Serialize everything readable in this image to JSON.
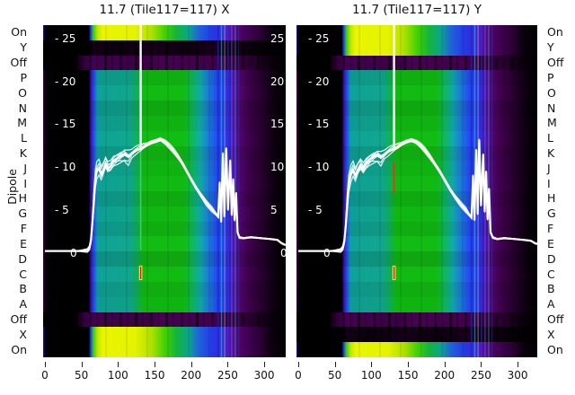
{
  "titles": {
    "left": "11.7 (Tile117=117) X",
    "right": "11.7 (Tile117=117) Y"
  },
  "axes": {
    "dipole_label": "Dipole",
    "dipole_rows": [
      "On",
      "Y",
      "Off",
      "P",
      "O",
      "N",
      "M",
      "L",
      "K",
      "J",
      "I",
      "H",
      "G",
      "F",
      "E",
      "D",
      "C",
      "B",
      "A",
      "Off",
      "X",
      "On"
    ],
    "x_ticks": [
      0,
      50,
      100,
      150,
      200,
      250,
      300
    ],
    "inner_value_ticks": [
      25,
      20,
      15,
      10,
      5,
      0
    ]
  },
  "chart_data": [
    {
      "type": "heatmap",
      "title": "11.7 (Tile117=117) X",
      "x_range": [
        0,
        330
      ],
      "x_ticks": [
        0,
        50,
        100,
        150,
        200,
        250,
        300
      ],
      "y_categories": [
        "On",
        "Y",
        "Off",
        "P",
        "O",
        "N",
        "M",
        "L",
        "K",
        "J",
        "I",
        "H",
        "G",
        "F",
        "E",
        "D",
        "C",
        "B",
        "A",
        "Off",
        "X",
        "On"
      ],
      "row_profiles": [
        "bright",
        "dark",
        "off",
        "mid",
        "mid",
        "mid",
        "mid",
        "mid",
        "mid",
        "mid",
        "mid",
        "mid",
        "mid",
        "mid",
        "mid",
        "mid",
        "mid",
        "mid",
        "mid",
        "off",
        "bright",
        "bright"
      ],
      "inner_left_labels": [
        "- 25",
        "- 20",
        "- 15",
        "- 10",
        "- 5"
      ],
      "inner_right_labels": [
        "25",
        "20",
        "15",
        "10",
        "5"
      ],
      "inner_zero_label": "0",
      "has_right_labels": true,
      "value_tick_values": [
        25,
        20,
        15,
        10,
        5
      ],
      "spike_x": 131,
      "sub_spike": {
        "color": "#3fd45e",
        "from": 12.8,
        "to": 0.3
      },
      "mark": {
        "x": 131,
        "from": -1.5,
        "to": -3.2,
        "fill": "#ffe81c",
        "center": "#e01313"
      },
      "line_points": [
        [
          0,
          0.2
        ],
        [
          45,
          0.2
        ],
        [
          58,
          0.3
        ],
        [
          61,
          0.6
        ],
        [
          63,
          1.5
        ],
        [
          65,
          3.6
        ],
        [
          67,
          6.2
        ],
        [
          69,
          8.6
        ],
        [
          71,
          9.6
        ],
        [
          74,
          9.9
        ],
        [
          77,
          9.2
        ],
        [
          80,
          9.7
        ],
        [
          83,
          10.4
        ],
        [
          86,
          9.9
        ],
        [
          90,
          10.1
        ],
        [
          94,
          10.7
        ],
        [
          99,
          11.0
        ],
        [
          104,
          11.3
        ],
        [
          109,
          11.5
        ],
        [
          114,
          11.2
        ],
        [
          119,
          11.6
        ],
        [
          124,
          11.9
        ],
        [
          128,
          12.1
        ],
        [
          131,
          12.2
        ],
        [
          135,
          12.4
        ],
        [
          140,
          12.6
        ],
        [
          146,
          12.9
        ],
        [
          152,
          13.1
        ],
        [
          158,
          13.3
        ],
        [
          164,
          13.0
        ],
        [
          170,
          12.5
        ],
        [
          176,
          11.9
        ],
        [
          182,
          11.2
        ],
        [
          188,
          10.4
        ],
        [
          194,
          9.5
        ],
        [
          200,
          8.6
        ],
        [
          207,
          7.6
        ],
        [
          214,
          6.7
        ],
        [
          221,
          5.8
        ],
        [
          228,
          5.1
        ],
        [
          234,
          4.5
        ],
        [
          237,
          4.2
        ],
        [
          239,
          8.2
        ],
        [
          241,
          3.6
        ],
        [
          243.5,
          11.6
        ],
        [
          245.5,
          4.2
        ],
        [
          248,
          12.2
        ],
        [
          250.5,
          5.0
        ],
        [
          253.5,
          10.8
        ],
        [
          255.5,
          4.4
        ],
        [
          257.5,
          8.6
        ],
        [
          259.5,
          3.8
        ],
        [
          261.5,
          7.0
        ],
        [
          263.5,
          2.4
        ],
        [
          266,
          1.8
        ],
        [
          272,
          1.7
        ],
        [
          282,
          1.8
        ],
        [
          295,
          1.7
        ],
        [
          308,
          1.6
        ],
        [
          318,
          1.5
        ],
        [
          324,
          1.1
        ],
        [
          329,
          0.9
        ]
      ]
    },
    {
      "type": "heatmap",
      "title": "11.7 (Tile117=117) Y",
      "x_range": [
        0,
        330
      ],
      "x_ticks": [
        0,
        50,
        100,
        150,
        200,
        250,
        300
      ],
      "y_categories": [
        "On",
        "Y",
        "Off",
        "P",
        "O",
        "N",
        "M",
        "L",
        "K",
        "J",
        "I",
        "H",
        "G",
        "F",
        "E",
        "D",
        "C",
        "B",
        "A",
        "Off",
        "X",
        "On"
      ],
      "row_profiles": [
        "bright",
        "bright",
        "off",
        "mid",
        "mid",
        "mid",
        "mid",
        "mid",
        "mid",
        "mid",
        "mid",
        "mid",
        "mid",
        "mid",
        "mid",
        "mid",
        "mid",
        "mid",
        "mid",
        "off",
        "dark",
        "bright"
      ],
      "inner_left_labels": [
        "- 25",
        "- 20",
        "- 15",
        "- 10",
        "- 5"
      ],
      "inner_right_labels": [],
      "inner_zero_label": "0",
      "has_right_labels": false,
      "value_tick_values": [
        25,
        20,
        15,
        10,
        5
      ],
      "spike_x": 131,
      "sub_spike": {
        "color": "#e83418",
        "from": 10.6,
        "to": 7.0
      },
      "mark": {
        "x": 131,
        "from": -1.5,
        "to": -3.2,
        "fill": "#ffe81c",
        "center": "#e01313"
      },
      "line_points": [
        [
          0,
          0.2
        ],
        [
          45,
          0.2
        ],
        [
          58,
          0.3
        ],
        [
          61,
          0.6
        ],
        [
          63,
          1.4
        ],
        [
          65,
          3.2
        ],
        [
          67,
          5.8
        ],
        [
          69,
          8.0
        ],
        [
          72,
          9.2
        ],
        [
          75,
          9.7
        ],
        [
          78,
          9.0
        ],
        [
          81,
          9.6
        ],
        [
          85,
          10.2
        ],
        [
          89,
          9.8
        ],
        [
          93,
          10.4
        ],
        [
          98,
          10.9
        ],
        [
          103,
          11.2
        ],
        [
          108,
          11.4
        ],
        [
          113,
          11.1
        ],
        [
          118,
          11.5
        ],
        [
          123,
          11.8
        ],
        [
          127,
          12.0
        ],
        [
          131,
          12.2
        ],
        [
          136,
          12.4
        ],
        [
          142,
          12.7
        ],
        [
          148,
          13.0
        ],
        [
          155,
          13.2
        ],
        [
          161,
          13.0
        ],
        [
          167,
          12.6
        ],
        [
          173,
          12.0
        ],
        [
          180,
          11.2
        ],
        [
          187,
          10.3
        ],
        [
          194,
          9.4
        ],
        [
          201,
          8.4
        ],
        [
          208,
          7.4
        ],
        [
          215,
          6.5
        ],
        [
          222,
          5.7
        ],
        [
          229,
          5.0
        ],
        [
          234,
          4.4
        ],
        [
          237,
          4.1
        ],
        [
          239,
          9.0
        ],
        [
          241,
          3.8
        ],
        [
          243.5,
          12.0
        ],
        [
          245.5,
          4.5
        ],
        [
          247.5,
          13.2
        ],
        [
          250,
          5.5
        ],
        [
          253,
          11.5
        ],
        [
          255,
          4.8
        ],
        [
          257,
          9.5
        ],
        [
          259,
          3.9
        ],
        [
          261,
          7.5
        ],
        [
          263,
          2.4
        ],
        [
          266,
          1.8
        ],
        [
          272,
          1.6
        ],
        [
          282,
          1.7
        ],
        [
          295,
          1.6
        ],
        [
          308,
          1.5
        ],
        [
          318,
          1.4
        ],
        [
          324,
          1.1
        ],
        [
          329,
          1.0
        ]
      ]
    }
  ],
  "colormap_profiles": {
    "bright": [
      [
        0,
        "#2b1690"
      ],
      [
        0.9,
        "#000000"
      ],
      [
        18.8,
        "#000000"
      ],
      [
        19.6,
        "#2038e8"
      ],
      [
        20.6,
        "#2fc71e"
      ],
      [
        22.5,
        "#bfe600"
      ],
      [
        24.5,
        "#e9f500"
      ],
      [
        38,
        "#e4f300"
      ],
      [
        45,
        "#a9e000"
      ],
      [
        50,
        "#44d200"
      ],
      [
        55,
        "#14b43c"
      ],
      [
        60,
        "#0ca48c"
      ],
      [
        64,
        "#2064d8"
      ],
      [
        70,
        "#2437e6"
      ],
      [
        74,
        "#3a2cd2"
      ],
      [
        77,
        "#5a14b0"
      ],
      [
        80,
        "#4c0a70"
      ],
      [
        83,
        "#47005a"
      ],
      [
        89,
        "#2d0038"
      ],
      [
        94,
        "#0d0010"
      ],
      [
        100,
        "#000000"
      ]
    ],
    "mid": [
      [
        0,
        "#46004e"
      ],
      [
        0.9,
        "#000000"
      ],
      [
        18.8,
        "#000000"
      ],
      [
        19.8,
        "#3912b2"
      ],
      [
        20.8,
        "#2342e2"
      ],
      [
        22.3,
        "#0d96a2"
      ],
      [
        24,
        "#0e9a8e"
      ],
      [
        36,
        "#0f9e86"
      ],
      [
        39,
        "#0fa84c"
      ],
      [
        41.5,
        "#10b211"
      ],
      [
        58,
        "#10b211"
      ],
      [
        62,
        "#0dae62"
      ],
      [
        65,
        "#10a0a4"
      ],
      [
        68,
        "#1a78cc"
      ],
      [
        72,
        "#2144e8"
      ],
      [
        76,
        "#2c2ed4"
      ],
      [
        78.5,
        "#4a14a6"
      ],
      [
        81,
        "#4c0668"
      ],
      [
        85,
        "#3c0048"
      ],
      [
        91,
        "#200026"
      ],
      [
        96,
        "#0a000c"
      ],
      [
        100,
        "#000000"
      ]
    ],
    "off": [
      [
        0,
        "#000000"
      ],
      [
        13.5,
        "#000000"
      ],
      [
        16,
        "#2a0032"
      ],
      [
        20,
        "#440050"
      ],
      [
        44,
        "#3a0044"
      ],
      [
        48,
        "#470052"
      ],
      [
        75,
        "#400049"
      ],
      [
        86,
        "#28002e"
      ],
      [
        93,
        "#0e0010"
      ],
      [
        100,
        "#000000"
      ]
    ],
    "dark": [
      [
        0,
        "#000000"
      ],
      [
        19,
        "#000000"
      ],
      [
        21,
        "#150018"
      ],
      [
        30,
        "#0a000c"
      ],
      [
        45,
        "#160019"
      ],
      [
        60,
        "#0c000e"
      ],
      [
        70,
        "#19001c"
      ],
      [
        80,
        "#100012"
      ],
      [
        90,
        "#050006"
      ],
      [
        100,
        "#000000"
      ]
    ]
  },
  "row_brightness": [
    1,
    1,
    1,
    0.98,
    1.05,
    0.94,
    1.0,
    1.06,
    0.96,
    1.0,
    1.04,
    0.95,
    1.03,
    0.97,
    1.06,
    0.93,
    1.05,
    0.97,
    1.01,
    1,
    1,
    1
  ],
  "rfi_stripes": [
    {
      "x": 237,
      "color": "#241ed0",
      "opacity": 0.55,
      "width": 2.2
    },
    {
      "x": 241.5,
      "color": "#3fc8f0",
      "opacity": 0.5,
      "width": 1.4
    },
    {
      "x": 246,
      "color": "#e8f2ff",
      "opacity": 0.38,
      "width": 1.2
    },
    {
      "x": 250.5,
      "color": "#2433e8",
      "opacity": 0.55,
      "width": 1.8
    },
    {
      "x": 255.5,
      "color": "#8a50e8",
      "opacity": 0.45,
      "width": 1.6
    },
    {
      "x": 260.5,
      "color": "#3fc8f0",
      "opacity": 0.45,
      "width": 1.2
    },
    {
      "x": 265,
      "color": "#2433e8",
      "opacity": 0.4,
      "width": 1.4
    }
  ],
  "line_color": "#ffffff"
}
